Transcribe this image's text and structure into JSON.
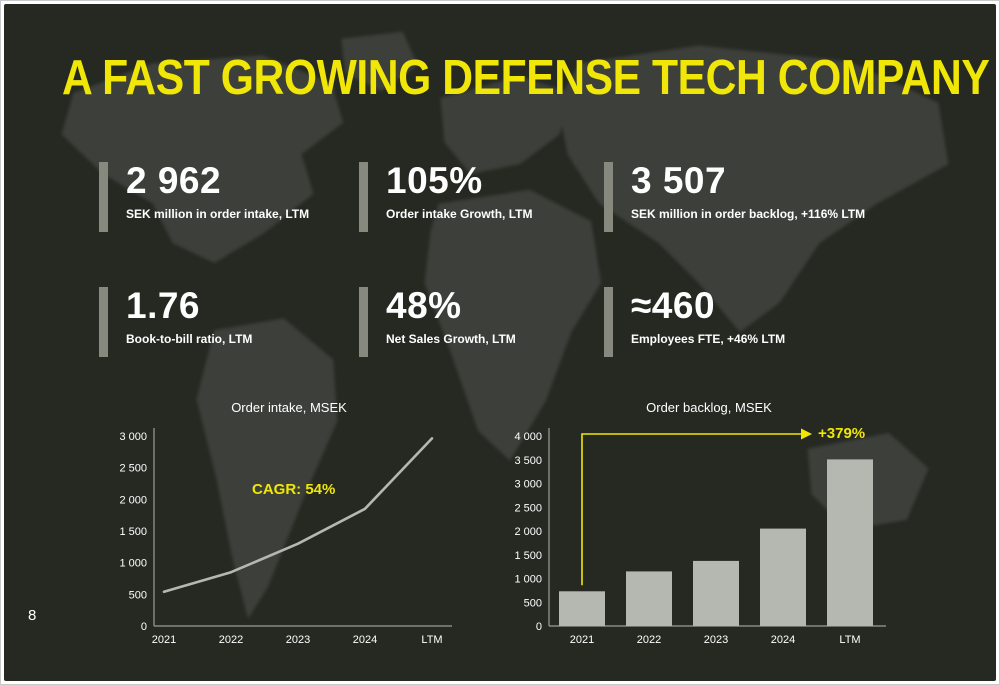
{
  "slide": {
    "title": "A FAST GROWING DEFENSE TECH COMPANY",
    "page_number": "8"
  },
  "colors": {
    "background": "#262922",
    "map": "#3d403a",
    "accent_yellow": "#f0e608",
    "text": "#ffffff",
    "kpi_bar": "#87897f",
    "chart_gray": "#b5b7b1"
  },
  "kpis": [
    {
      "value": "2 962",
      "label": "SEK million in order intake, LTM"
    },
    {
      "value": "105%",
      "label": "Order intake Growth, LTM"
    },
    {
      "value": "3 507",
      "label": "SEK million in order backlog, +116% LTM"
    },
    {
      "value": "1.76",
      "label": "Book-to-bill ratio, LTM"
    },
    {
      "value": "48%",
      "label": "Net Sales Growth, LTM"
    },
    {
      "value": "≈460",
      "label": "Employees FTE, +46% LTM"
    }
  ],
  "chart_data": [
    {
      "type": "line",
      "title": "Order intake, MSEK",
      "categories": [
        "2021",
        "2022",
        "2023",
        "2024",
        "LTM"
      ],
      "values": [
        540,
        850,
        1300,
        1850,
        2962
      ],
      "ylim": [
        0,
        3000
      ],
      "yticks": [
        "3 000",
        "2 500",
        "2 000",
        "1 500",
        "1 000",
        "500",
        "0"
      ],
      "annotation": "CAGR: 54%",
      "grid": false,
      "legend": "none"
    },
    {
      "type": "bar",
      "title": "Order backlog, MSEK",
      "categories": [
        "2021",
        "2022",
        "2023",
        "2024",
        "LTM"
      ],
      "values": [
        730,
        1150,
        1370,
        2050,
        3507
      ],
      "ylim": [
        0,
        4000
      ],
      "yticks": [
        "4 000",
        "3 500",
        "3 000",
        "2 500",
        "2 000",
        "1 500",
        "1 000",
        "500",
        "0"
      ],
      "annotation": "+379%",
      "grid": false,
      "legend": "none"
    }
  ]
}
